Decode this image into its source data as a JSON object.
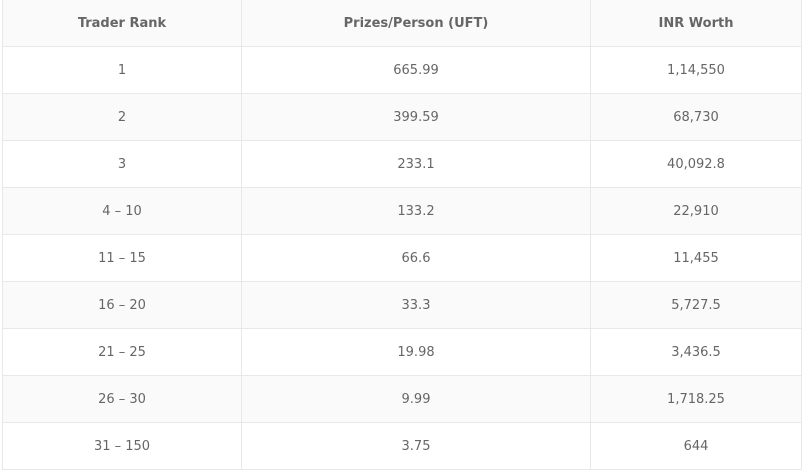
{
  "table": {
    "headers": [
      "Trader Rank",
      "Prizes/Person (UFT)",
      "INR Worth"
    ],
    "rows": [
      [
        "1",
        "665.99",
        "1,14,550"
      ],
      [
        "2",
        "399.59",
        "68,730"
      ],
      [
        "3",
        "233.1",
        "40,092.8"
      ],
      [
        "4 – 10",
        "133.2",
        "22,910"
      ],
      [
        "11 – 15",
        "66.6",
        "11,455"
      ],
      [
        "16 – 20",
        "33.3",
        "5,727.5"
      ],
      [
        "21 – 25",
        "19.98",
        "3,436.5"
      ],
      [
        "26 – 30",
        "9.99",
        "1,718.25"
      ],
      [
        "31 – 150",
        "3.75",
        "644"
      ]
    ]
  }
}
